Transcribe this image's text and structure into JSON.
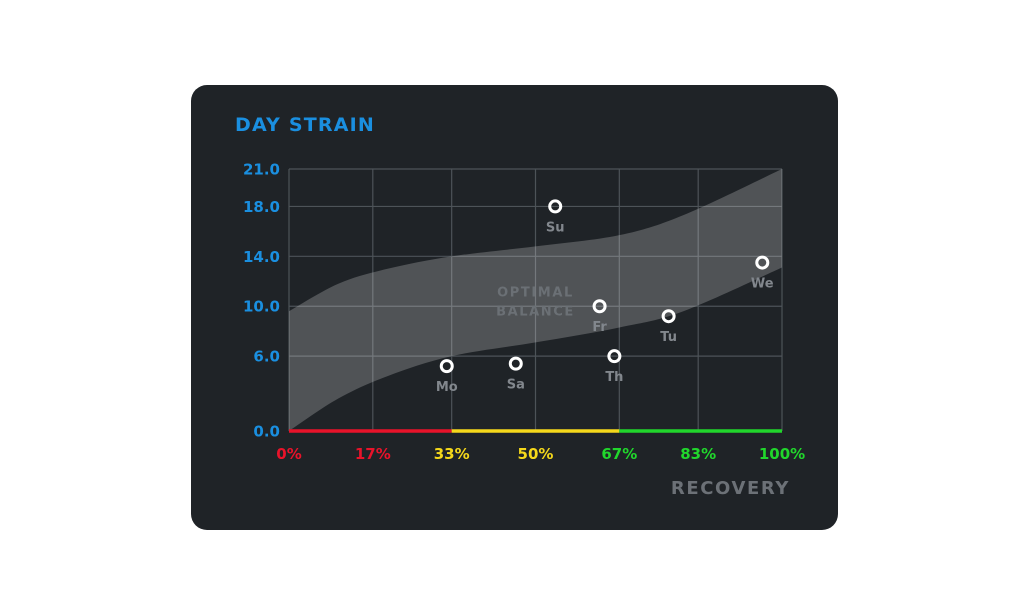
{
  "chart_data": {
    "type": "scatter",
    "title": "DAY STRAIN",
    "xlabel": "RECOVERY",
    "ylabel": "",
    "xlim": [
      0,
      100
    ],
    "ylim": [
      0,
      21
    ],
    "grid": true,
    "x_ticks": [
      {
        "value": 0,
        "label": "0%",
        "color": "#e8132a"
      },
      {
        "value": 17,
        "label": "17%",
        "color": "#e8132a"
      },
      {
        "value": 33,
        "label": "33%",
        "color": "#f5d81b"
      },
      {
        "value": 50,
        "label": "50%",
        "color": "#f5d81b"
      },
      {
        "value": 67,
        "label": "67%",
        "color": "#21d62c"
      },
      {
        "value": 83,
        "label": "83%",
        "color": "#21d62c"
      },
      {
        "value": 100,
        "label": "100%",
        "color": "#21d62c"
      }
    ],
    "y_ticks": [
      {
        "value": 0,
        "label": "0.0"
      },
      {
        "value": 6,
        "label": "6.0"
      },
      {
        "value": 10,
        "label": "10.0"
      },
      {
        "value": 14,
        "label": "14.0"
      },
      {
        "value": 18,
        "label": "18.0"
      },
      {
        "value": 21,
        "label": "21.0"
      }
    ],
    "recovery_zones": [
      {
        "from": 0,
        "to": 33,
        "color": "#e8132a"
      },
      {
        "from": 33,
        "to": 67,
        "color": "#f5d81b"
      },
      {
        "from": 67,
        "to": 100,
        "color": "#21d62c"
      }
    ],
    "band": {
      "label_lines": [
        "OPTIMAL",
        "BALANCE"
      ],
      "label_at": {
        "x": 50,
        "y": 10.8
      },
      "lower": [
        [
          0,
          0
        ],
        [
          10,
          2.6
        ],
        [
          20,
          4.4
        ],
        [
          33,
          6.0
        ],
        [
          50,
          7.1
        ],
        [
          67,
          8.3
        ],
        [
          80,
          9.6
        ],
        [
          100,
          13.1
        ]
      ],
      "upper": [
        [
          0,
          9.6
        ],
        [
          10,
          11.8
        ],
        [
          20,
          13.0
        ],
        [
          33,
          14.0
        ],
        [
          50,
          14.8
        ],
        [
          67,
          15.7
        ],
        [
          80,
          17.3
        ],
        [
          100,
          21.0
        ]
      ]
    },
    "series": [
      {
        "points": [
          {
            "label": "Mo",
            "x": 32,
            "y": 5.2
          },
          {
            "label": "Sa",
            "x": 46,
            "y": 5.4
          },
          {
            "label": "Su",
            "x": 54,
            "y": 18.0
          },
          {
            "label": "Fr",
            "x": 63,
            "y": 10.0
          },
          {
            "label": "Th",
            "x": 66,
            "y": 6.0
          },
          {
            "label": "Tu",
            "x": 77,
            "y": 9.2
          },
          {
            "label": "We",
            "x": 96,
            "y": 13.5
          }
        ]
      }
    ]
  }
}
